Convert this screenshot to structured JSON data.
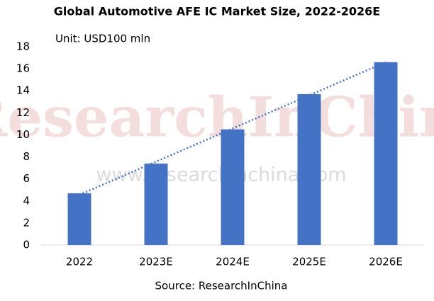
{
  "chart_data": {
    "type": "bar",
    "title": "Global Automotive AFE IC Market Size, 2022-2026E",
    "subtitle": "Unit: USD100 mln",
    "source": "Source: ResearchInChina",
    "watermark": "ResearchInChina",
    "watermark_url": "www.researchinchina.com",
    "categories": [
      "2022",
      "2023E",
      "2024E",
      "2025E",
      "2026E"
    ],
    "values": [
      4.7,
      7.4,
      10.5,
      13.7,
      16.6
    ],
    "color": "#4472c4",
    "trendline": true,
    "ylim": [
      0,
      18
    ],
    "yticks": [
      0,
      2,
      4,
      6,
      8,
      10,
      12,
      14,
      16,
      18
    ],
    "grid": false
  }
}
